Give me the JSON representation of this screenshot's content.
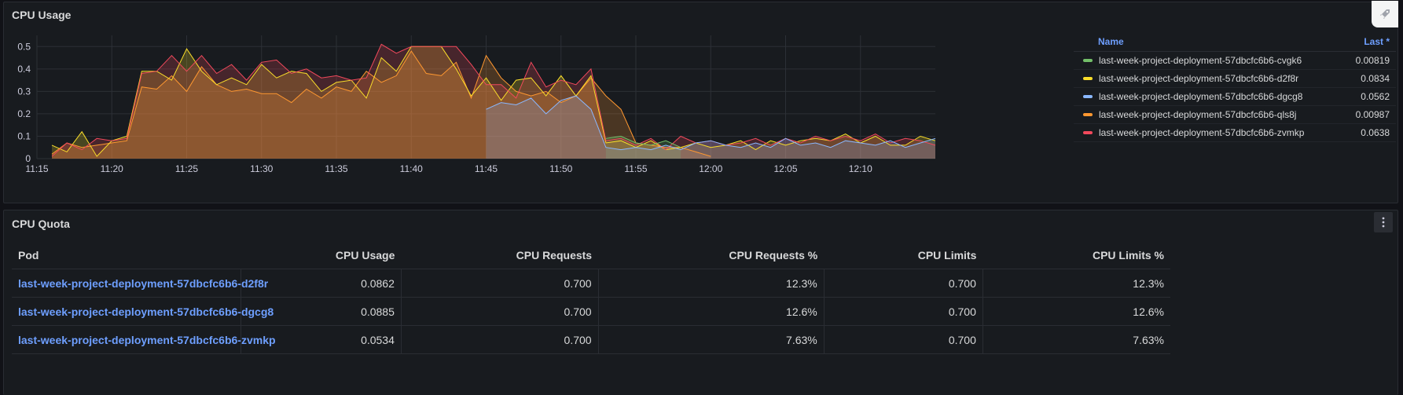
{
  "cpu_panel": {
    "title": "CPU Usage"
  },
  "legend": {
    "name_header": "Name",
    "last_header": "Last *",
    "items": [
      {
        "name": "last-week-project-deployment-57dbcfc6b6-cvgk6",
        "last": "0.00819",
        "color": "#73bf69"
      },
      {
        "name": "last-week-project-deployment-57dbcfc6b6-d2f8r",
        "last": "0.0834",
        "color": "#fade2a"
      },
      {
        "name": "last-week-project-deployment-57dbcfc6b6-dgcg8",
        "last": "0.0562",
        "color": "#8ab8ff"
      },
      {
        "name": "last-week-project-deployment-57dbcfc6b6-qls8j",
        "last": "0.00987",
        "color": "#ff9830"
      },
      {
        "name": "last-week-project-deployment-57dbcfc6b6-zvmkp",
        "last": "0.0638",
        "color": "#f2495c"
      }
    ]
  },
  "chart_data": {
    "type": "area",
    "x_ticks": [
      "11:15",
      "11:20",
      "11:25",
      "11:30",
      "11:35",
      "11:40",
      "11:45",
      "11:50",
      "11:55",
      "12:00",
      "12:05",
      "12:10"
    ],
    "y_ticks": [
      "0",
      "0.1",
      "0.2",
      "0.3",
      "0.4",
      "0.5"
    ],
    "ylim": [
      0,
      0.55
    ],
    "xlim_minutes": [
      0,
      60
    ],
    "grid": true,
    "legend_placement": "right",
    "series": [
      {
        "name": "last-week-project-deployment-57dbcfc6b6-qls8j",
        "color": "#ff9830",
        "points": [
          [
            1,
            0.02
          ],
          [
            2,
            0.07
          ],
          [
            3,
            0.05
          ],
          [
            4,
            0.06
          ],
          [
            5,
            0.07
          ],
          [
            6,
            0.08
          ],
          [
            7,
            0.32
          ],
          [
            8,
            0.31
          ],
          [
            9,
            0.37
          ],
          [
            10,
            0.3
          ],
          [
            11,
            0.41
          ],
          [
            12,
            0.33
          ],
          [
            13,
            0.3
          ],
          [
            14,
            0.31
          ],
          [
            15,
            0.29
          ],
          [
            16,
            0.29
          ],
          [
            17,
            0.25
          ],
          [
            18,
            0.31
          ],
          [
            19,
            0.27
          ],
          [
            20,
            0.32
          ],
          [
            21,
            0.3
          ],
          [
            22,
            0.39
          ],
          [
            23,
            0.34
          ],
          [
            24,
            0.37
          ],
          [
            25,
            0.48
          ],
          [
            26,
            0.38
          ],
          [
            27,
            0.37
          ],
          [
            28,
            0.43
          ],
          [
            29,
            0.27
          ],
          [
            30,
            0.46
          ],
          [
            31,
            0.36
          ],
          [
            32,
            0.3
          ],
          [
            33,
            0.28
          ],
          [
            34,
            0.3
          ],
          [
            35,
            0.25
          ],
          [
            36,
            0.28
          ],
          [
            37,
            0.36
          ],
          [
            38,
            0.28
          ],
          [
            39,
            0.22
          ],
          [
            40,
            0.07
          ],
          [
            41,
            0.06
          ],
          [
            42,
            0.05
          ],
          [
            43,
            0.05
          ],
          [
            44,
            0.03
          ],
          [
            45,
            0.01
          ]
        ]
      },
      {
        "name": "last-week-project-deployment-57dbcfc6b6-d2f8r",
        "color": "#fade2a",
        "points": [
          [
            1,
            0.06
          ],
          [
            2,
            0.03
          ],
          [
            3,
            0.12
          ],
          [
            4,
            0.01
          ],
          [
            5,
            0.08
          ],
          [
            6,
            0.1
          ],
          [
            7,
            0.39
          ],
          [
            8,
            0.39
          ],
          [
            9,
            0.35
          ],
          [
            10,
            0.49
          ],
          [
            11,
            0.39
          ],
          [
            12,
            0.33
          ],
          [
            13,
            0.36
          ],
          [
            14,
            0.33
          ],
          [
            15,
            0.42
          ],
          [
            16,
            0.36
          ],
          [
            17,
            0.39
          ],
          [
            18,
            0.38
          ],
          [
            19,
            0.3
          ],
          [
            20,
            0.34
          ],
          [
            21,
            0.35
          ],
          [
            22,
            0.27
          ],
          [
            23,
            0.45
          ],
          [
            24,
            0.39
          ],
          [
            25,
            0.5
          ],
          [
            26,
            0.5
          ],
          [
            27,
            0.5
          ],
          [
            28,
            0.4
          ],
          [
            29,
            0.28
          ],
          [
            30,
            0.36
          ],
          [
            31,
            0.26
          ],
          [
            32,
            0.35
          ],
          [
            33,
            0.36
          ],
          [
            34,
            0.28
          ],
          [
            35,
            0.37
          ],
          [
            36,
            0.28
          ],
          [
            37,
            0.37
          ],
          [
            38,
            0.07
          ],
          [
            39,
            0.08
          ],
          [
            40,
            0.05
          ],
          [
            41,
            0.08
          ],
          [
            42,
            0.04
          ],
          [
            43,
            0.05
          ],
          [
            44,
            0.07
          ],
          [
            45,
            0.05
          ],
          [
            46,
            0.06
          ],
          [
            47,
            0.08
          ],
          [
            48,
            0.04
          ],
          [
            49,
            0.08
          ],
          [
            50,
            0.06
          ],
          [
            51,
            0.08
          ],
          [
            52,
            0.09
          ],
          [
            53,
            0.08
          ],
          [
            54,
            0.11
          ],
          [
            55,
            0.07
          ],
          [
            56,
            0.1
          ],
          [
            57,
            0.06
          ],
          [
            58,
            0.06
          ],
          [
            59,
            0.1
          ],
          [
            60,
            0.08
          ]
        ]
      },
      {
        "name": "last-week-project-deployment-57dbcfc6b6-zvmkp",
        "color": "#f2495c",
        "points": [
          [
            1,
            0.01
          ],
          [
            2,
            0.07
          ],
          [
            3,
            0.04
          ],
          [
            4,
            0.09
          ],
          [
            5,
            0.08
          ],
          [
            6,
            0.09
          ],
          [
            7,
            0.38
          ],
          [
            8,
            0.39
          ],
          [
            9,
            0.46
          ],
          [
            10,
            0.39
          ],
          [
            11,
            0.46
          ],
          [
            12,
            0.38
          ],
          [
            13,
            0.42
          ],
          [
            14,
            0.35
          ],
          [
            15,
            0.43
          ],
          [
            16,
            0.44
          ],
          [
            17,
            0.38
          ],
          [
            18,
            0.4
          ],
          [
            19,
            0.36
          ],
          [
            20,
            0.37
          ],
          [
            21,
            0.35
          ],
          [
            22,
            0.36
          ],
          [
            23,
            0.51
          ],
          [
            24,
            0.47
          ],
          [
            25,
            0.5
          ],
          [
            26,
            0.5
          ],
          [
            27,
            0.5
          ],
          [
            28,
            0.5
          ],
          [
            29,
            0.42
          ],
          [
            30,
            0.33
          ],
          [
            31,
            0.33
          ],
          [
            32,
            0.27
          ],
          [
            33,
            0.43
          ],
          [
            34,
            0.32
          ],
          [
            35,
            0.35
          ],
          [
            36,
            0.33
          ],
          [
            37,
            0.4
          ],
          [
            38,
            0.08
          ],
          [
            39,
            0.09
          ],
          [
            40,
            0.06
          ],
          [
            41,
            0.09
          ],
          [
            42,
            0.04
          ],
          [
            43,
            0.1
          ],
          [
            44,
            0.07
          ],
          [
            45,
            0.08
          ],
          [
            46,
            0.06
          ],
          [
            47,
            0.07
          ],
          [
            48,
            0.09
          ],
          [
            49,
            0.06
          ],
          [
            50,
            0.09
          ],
          [
            51,
            0.07
          ],
          [
            52,
            0.1
          ],
          [
            53,
            0.08
          ],
          [
            54,
            0.1
          ],
          [
            55,
            0.08
          ],
          [
            56,
            0.11
          ],
          [
            57,
            0.07
          ],
          [
            58,
            0.09
          ],
          [
            59,
            0.08
          ],
          [
            60,
            0.06
          ]
        ]
      },
      {
        "name": "last-week-project-deployment-57dbcfc6b6-cvgk6",
        "color": "#73bf69",
        "points": [
          [
            38,
            0.09
          ],
          [
            39,
            0.1
          ],
          [
            40,
            0.07
          ],
          [
            41,
            0.06
          ],
          [
            42,
            0.08
          ],
          [
            43,
            0.05
          ]
        ]
      },
      {
        "name": "last-week-project-deployment-57dbcfc6b6-dgcg8",
        "color": "#8ab8ff",
        "points": [
          [
            30,
            0.22
          ],
          [
            31,
            0.25
          ],
          [
            32,
            0.24
          ],
          [
            33,
            0.27
          ],
          [
            34,
            0.2
          ],
          [
            35,
            0.26
          ],
          [
            36,
            0.28
          ],
          [
            37,
            0.22
          ],
          [
            38,
            0.05
          ],
          [
            39,
            0.04
          ],
          [
            40,
            0.05
          ],
          [
            41,
            0.04
          ],
          [
            42,
            0.06
          ],
          [
            43,
            0.04
          ],
          [
            44,
            0.07
          ],
          [
            45,
            0.08
          ],
          [
            46,
            0.06
          ],
          [
            47,
            0.05
          ],
          [
            48,
            0.07
          ],
          [
            49,
            0.05
          ],
          [
            50,
            0.09
          ],
          [
            51,
            0.06
          ],
          [
            52,
            0.07
          ],
          [
            53,
            0.05
          ],
          [
            54,
            0.08
          ],
          [
            55,
            0.07
          ],
          [
            56,
            0.06
          ],
          [
            57,
            0.08
          ],
          [
            58,
            0.05
          ],
          [
            59,
            0.07
          ],
          [
            60,
            0.09
          ]
        ]
      }
    ]
  },
  "quota_panel": {
    "title": "CPU Quota",
    "headers": [
      "Pod",
      "CPU Usage",
      "CPU Requests",
      "CPU Requests %",
      "CPU Limits",
      "CPU Limits %"
    ],
    "rows": [
      [
        "last-week-project-deployment-57dbcfc6b6-d2f8r",
        "0.0862",
        "0.700",
        "12.3%",
        "0.700",
        "12.3%"
      ],
      [
        "last-week-project-deployment-57dbcfc6b6-dgcg8",
        "0.0885",
        "0.700",
        "12.6%",
        "0.700",
        "12.6%"
      ],
      [
        "last-week-project-deployment-57dbcfc6b6-zvmkp",
        "0.0534",
        "0.700",
        "7.63%",
        "0.700",
        "7.63%"
      ]
    ]
  }
}
